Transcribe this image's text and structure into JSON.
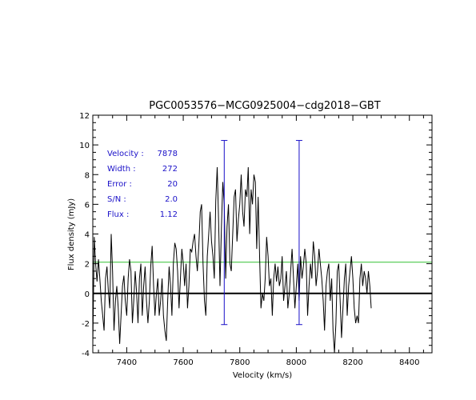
{
  "chart_data": {
    "type": "line",
    "title": "PGC0053576−MCG0925004−cdg2018−GBT",
    "xlabel": "Velocity (km/s)",
    "ylabel": "Flux density (mJy)",
    "xlim": [
      7280,
      8480
    ],
    "ylim": [
      -4,
      12
    ],
    "x_ticks": [
      7400,
      7600,
      7800,
      8000,
      8200,
      8400
    ],
    "y_ticks": [
      -4,
      -2,
      0,
      2,
      4,
      6,
      8,
      10,
      12
    ],
    "grid": false,
    "series": [
      {
        "color": "#000000",
        "x_start": 7280,
        "x_step": 5,
        "values": [
          -3.5,
          3.8,
          2.0,
          0.8,
          2.3,
          1.0,
          -0.5,
          -1.5,
          -2.5,
          1.0,
          1.8,
          0.2,
          -1.0,
          4.0,
          1.5,
          -2.5,
          -0.5,
          0.5,
          -1.0,
          -3.4,
          -1.5,
          0.5,
          1.2,
          -0.5,
          -1.5,
          1.0,
          2.3,
          1.5,
          -2.0,
          -0.5,
          1.5,
          0.0,
          -2.0,
          1.0,
          2.0,
          -1.5,
          0.5,
          1.8,
          -0.5,
          -2.0,
          -0.5,
          1.8,
          3.2,
          0.5,
          -1.5,
          0.0,
          1.0,
          -1.5,
          -0.5,
          1.0,
          -1.5,
          -2.5,
          -3.2,
          -0.5,
          1.8,
          0.5,
          -1.5,
          2.0,
          3.4,
          3.0,
          1.5,
          -1.0,
          1.0,
          3.0,
          2.0,
          0.5,
          2.0,
          -1.0,
          0.5,
          3.0,
          2.8,
          3.5,
          4.0,
          2.5,
          1.5,
          3.2,
          5.5,
          6.0,
          2.0,
          -0.5,
          -1.5,
          2.5,
          4.0,
          5.5,
          3.5,
          2.5,
          1.0,
          6.2,
          8.5,
          5.0,
          0.5,
          4.5,
          7.5,
          6.0,
          1.0,
          4.5,
          6.0,
          2.0,
          1.5,
          4.0,
          6.5,
          7.0,
          3.5,
          5.0,
          6.0,
          8.0,
          5.5,
          4.5,
          7.0,
          6.5,
          8.5,
          4.0,
          7.0,
          6.0,
          8.0,
          7.5,
          3.0,
          6.5,
          2.5,
          -1.0,
          0.0,
          -0.5,
          1.0,
          3.8,
          2.5,
          0.5,
          1.0,
          -1.5,
          1.0,
          2.0,
          0.8,
          1.8,
          0.5,
          1.0,
          2.5,
          -0.5,
          0.5,
          1.5,
          -1.0,
          0.0,
          1.5,
          3.0,
          1.0,
          -1.0,
          0.5,
          2.0,
          -0.5,
          2.5,
          1.0,
          1.8,
          3.0,
          2.0,
          -1.5,
          0.5,
          2.0,
          1.0,
          3.5,
          2.5,
          0.5,
          1.5,
          3.0,
          2.0,
          1.0,
          -0.5,
          -2.5,
          0.5,
          1.5,
          2.0,
          -0.5,
          1.0,
          -2.5,
          -4.0,
          -2.0,
          1.5,
          2.0,
          -0.5,
          -3.0,
          -1.0,
          1.0,
          2.0,
          -1.5,
          0.5,
          1.5,
          2.5,
          1.0,
          -1.0,
          -2.0,
          -1.5,
          -2.0,
          1.0,
          2.0,
          0.5,
          1.5,
          1.0,
          0.0,
          1.5,
          0.5,
          -1.0
        ]
      }
    ],
    "baseline": {
      "y": 0,
      "color": "#000000"
    },
    "rms_line": {
      "y": 2.1,
      "color": "#32c032"
    },
    "markers": [
      {
        "x": 7745,
        "y_low": -2.1,
        "y_high": 10.3,
        "color": "#1a10c8"
      },
      {
        "x": 8010,
        "y_low": -2.1,
        "y_high": 10.3,
        "color": "#1a10c8"
      }
    ],
    "info_panel": [
      {
        "label": "Velocity :",
        "value": "7878"
      },
      {
        "label": "Width :",
        "value": "272"
      },
      {
        "label": "Error :",
        "value": "20"
      },
      {
        "label": "S/N :",
        "value": "2.0"
      },
      {
        "label": "Flux :",
        "value": "1.12"
      }
    ]
  }
}
